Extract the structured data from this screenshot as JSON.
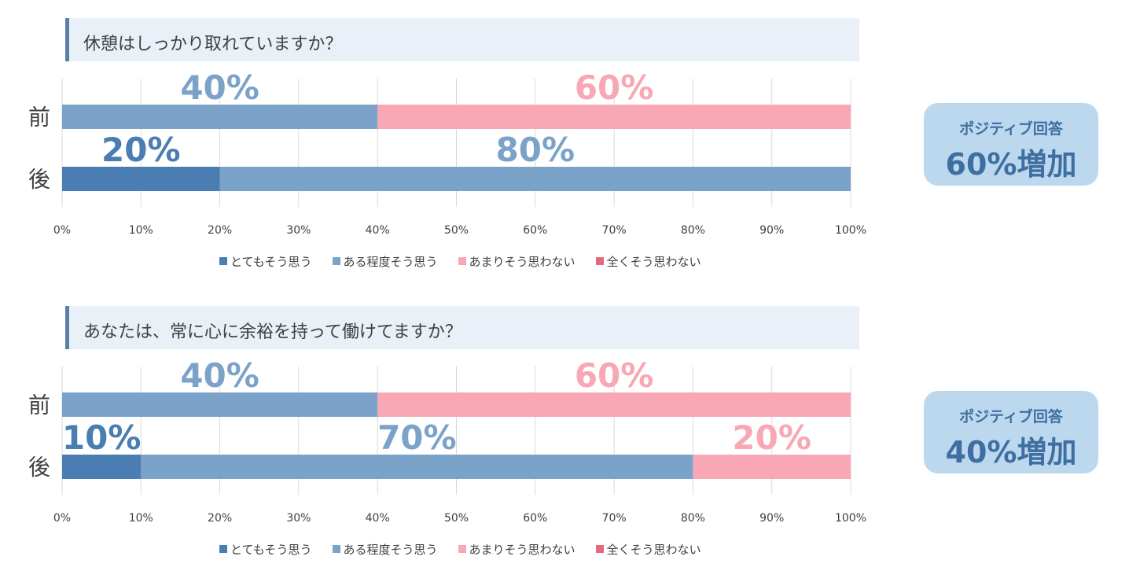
{
  "colors": {
    "とてもそう思う": "#4a7db1",
    "ある程度そう思う": "#7ba3c9",
    "あまりそう思わない": "#f8a8b4",
    "全くそう思わない": "#e8677d"
  },
  "chart_data": [
    {
      "type": "bar",
      "orientation": "horizontal-stacked",
      "title": "休憩はしっかり取れていますか？",
      "categories": [
        "前",
        "後"
      ],
      "series": [
        {
          "name": "とてもそう思う",
          "values": [
            0,
            20
          ]
        },
        {
          "name": "ある程度そう思う",
          "values": [
            40,
            80
          ]
        },
        {
          "name": "あまりそう思わない",
          "values": [
            60,
            0
          ]
        },
        {
          "name": "全くそう思わない",
          "values": [
            0,
            0
          ]
        }
      ],
      "xlim": [
        0,
        100
      ],
      "ticks": [
        "0%",
        "10%",
        "20%",
        "30%",
        "40%",
        "50%",
        "60%",
        "70%",
        "80%",
        "90%",
        "100%"
      ],
      "grid": true,
      "legend": "bottom",
      "badge": {
        "line1": "ポジティブ回答",
        "line2": "60%増加"
      }
    },
    {
      "type": "bar",
      "orientation": "horizontal-stacked",
      "title": "あなたは、常に心に余裕を持って働けてますか？",
      "categories": [
        "前",
        "後"
      ],
      "series": [
        {
          "name": "とてもそう思う",
          "values": [
            0,
            10
          ]
        },
        {
          "name": "ある程度そう思う",
          "values": [
            40,
            70
          ]
        },
        {
          "name": "あまりそう思わない",
          "values": [
            60,
            20
          ]
        },
        {
          "name": "全くそう思わない",
          "values": [
            0,
            0
          ]
        }
      ],
      "xlim": [
        0,
        100
      ],
      "ticks": [
        "0%",
        "10%",
        "20%",
        "30%",
        "40%",
        "50%",
        "60%",
        "70%",
        "80%",
        "90%",
        "100%"
      ],
      "grid": true,
      "legend": "bottom",
      "badge": {
        "line1": "ポジティブ回答",
        "line2": "40%増加"
      }
    }
  ]
}
